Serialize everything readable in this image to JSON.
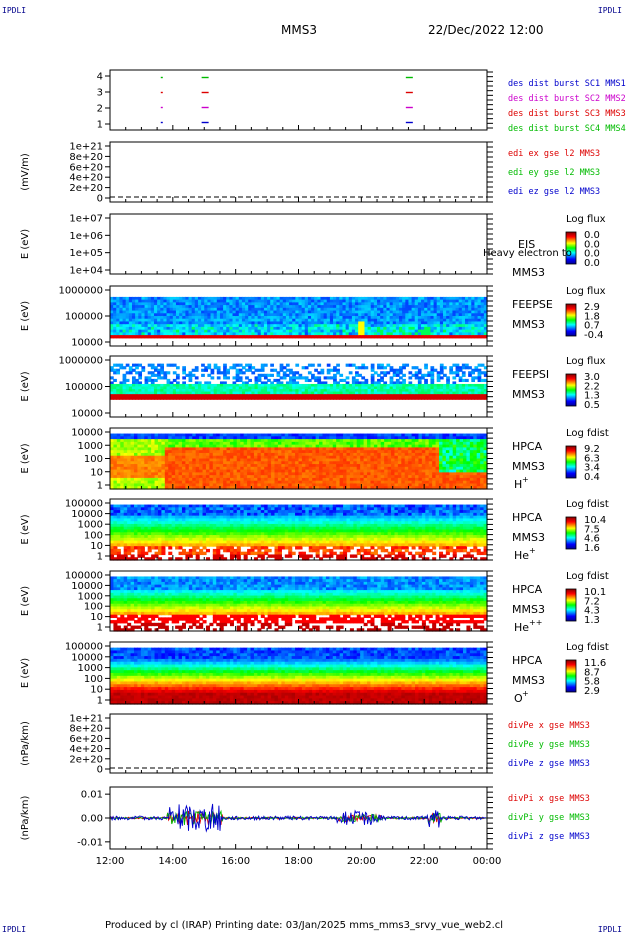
{
  "corners": {
    "tl": "IPDLI",
    "tr": "IPDLI",
    "bl": "IPDLI",
    "br": "IPDLI"
  },
  "header": {
    "title": "MMS3",
    "datetime": "22/Dec/2022 12:00"
  },
  "footer": {
    "text": "Produced by cl (IRAP)   Printing date: 03/Jan/2025   mms_mms3_srvy_vue_web2.cl"
  },
  "colors": {
    "blue": "#0000cc",
    "magenta": "#cc00cc",
    "red": "#dd0000",
    "green": "#00bb00"
  },
  "chart_data": [
    {
      "type": "scatter",
      "id": "burst",
      "ylim": [
        0.5,
        4.5
      ],
      "ytick_labels": [
        "4",
        "3",
        "2",
        "1"
      ],
      "series": [
        {
          "name": "des dist burst SC1 MMS1",
          "color": "blue",
          "y": 1,
          "x": [
            "13:37",
            "14:55",
            "21:25"
          ]
        },
        {
          "name": "des dist burst SC2 MMS2",
          "color": "magenta",
          "y": 2,
          "x": [
            "13:37",
            "14:55",
            "21:25"
          ]
        },
        {
          "name": "des dist burst SC3 MMS3",
          "color": "red",
          "y": 3,
          "x": [
            "13:37",
            "14:55",
            "21:25"
          ]
        },
        {
          "name": "des dist burst SC4 MMS4",
          "color": "green",
          "y": 4,
          "x": [
            "13:37",
            "14:55",
            "21:25"
          ]
        }
      ]
    },
    {
      "type": "line",
      "id": "edi",
      "ylabel": "(mV/m)",
      "ytick_labels": [
        "1e+21",
        "8e+20",
        "6e+20",
        "4e+20",
        "2e+20",
        "0"
      ],
      "series": [
        {
          "name": "edi ex gse l2 MMS3",
          "color": "red"
        },
        {
          "name": "edi ey gse l2 MMS3",
          "color": "green"
        },
        {
          "name": "edi ez gse l2 MMS3",
          "color": "blue"
        }
      ]
    },
    {
      "type": "heatmap",
      "id": "eis",
      "ylabel": "E (eV)",
      "ytick_labels": [
        "1e+07",
        "1e+06",
        "1e+05",
        "1e+04"
      ],
      "side": [
        "EIS",
        "MMS3"
      ],
      "overlay": "Heavy electron to",
      "cbar_title": "Log flux",
      "cbar": [
        "0.0",
        "0.0",
        "0.0",
        "0.0"
      ]
    },
    {
      "type": "heatmap",
      "id": "feepse",
      "ylabel": "E (eV)",
      "ytick_labels": [
        "1000000",
        "100000",
        "10000"
      ],
      "side": [
        "FEEPSE",
        "MMS3"
      ],
      "cbar_title": "Log flux",
      "cbar": [
        "2.9",
        "1.8",
        "0.7",
        "-0.4"
      ]
    },
    {
      "type": "heatmap",
      "id": "feepsi",
      "ylabel": "E (eV)",
      "ytick_labels": [
        "1000000",
        "100000",
        "10000"
      ],
      "side": [
        "FEEPSI",
        "MMS3"
      ],
      "cbar_title": "Log flux",
      "cbar": [
        "3.0",
        "2.2",
        "1.3",
        "0.5"
      ]
    },
    {
      "type": "heatmap",
      "id": "hpca_h",
      "ylabel": "E (eV)",
      "ytick_labels": [
        "10000",
        "1000",
        "100",
        "10",
        "1"
      ],
      "side": [
        "HPCA",
        "MMS3"
      ],
      "species": "H",
      "sup": "+",
      "cbar_title": "Log fdist",
      "cbar": [
        "9.2",
        "6.3",
        "3.4",
        "0.4"
      ]
    },
    {
      "type": "heatmap",
      "id": "hpca_he",
      "ylabel": "E (eV)",
      "ytick_labels": [
        "100000",
        "10000",
        "1000",
        "100",
        "10",
        "1"
      ],
      "side": [
        "HPCA",
        "MMS3"
      ],
      "species": "He",
      "sup": "+",
      "cbar_title": "Log fdist",
      "cbar": [
        "10.4",
        "7.5",
        "4.6",
        "1.6"
      ]
    },
    {
      "type": "heatmap",
      "id": "hpca_hepp",
      "ylabel": "E (eV)",
      "ytick_labels": [
        "100000",
        "10000",
        "1000",
        "100",
        "10",
        "1"
      ],
      "side": [
        "HPCA",
        "MMS3"
      ],
      "species": "He",
      "sup": "++",
      "cbar_title": "Log fdist",
      "cbar": [
        "10.1",
        "7.2",
        "4.3",
        "1.3"
      ]
    },
    {
      "type": "heatmap",
      "id": "hpca_o",
      "ylabel": "E (eV)",
      "ytick_labels": [
        "100000",
        "10000",
        "1000",
        "100",
        "10",
        "1"
      ],
      "side": [
        "HPCA",
        "MMS3"
      ],
      "species": "O",
      "sup": "+",
      "cbar_title": "Log fdist",
      "cbar": [
        "11.6",
        "8.7",
        "5.8",
        "2.9"
      ]
    },
    {
      "type": "line",
      "id": "divpe",
      "ylabel": "(nPa/km)",
      "ytick_labels": [
        "1e+21",
        "8e+20",
        "6e+20",
        "4e+20",
        "2e+20",
        "0"
      ],
      "series": [
        {
          "name": "divPe x gse MMS3",
          "color": "red"
        },
        {
          "name": "divPe y gse MMS3",
          "color": "green"
        },
        {
          "name": "divPe z gse MMS3",
          "color": "blue"
        }
      ]
    },
    {
      "type": "line",
      "id": "divpi",
      "ylabel": "(nPa/km)",
      "ytick_labels": [
        "0.01",
        "0.00",
        "-0.01"
      ],
      "ylim": [
        -0.013,
        0.013
      ],
      "series": [
        {
          "name": "divPi x gse MMS3",
          "color": "red"
        },
        {
          "name": "divPi y gse MMS3",
          "color": "green"
        },
        {
          "name": "divPi z gse MMS3",
          "color": "blue"
        }
      ]
    }
  ],
  "x_axis": {
    "ticks": [
      "12:00",
      "14:00",
      "16:00",
      "18:00",
      "20:00",
      "22:00",
      "00:00"
    ]
  }
}
